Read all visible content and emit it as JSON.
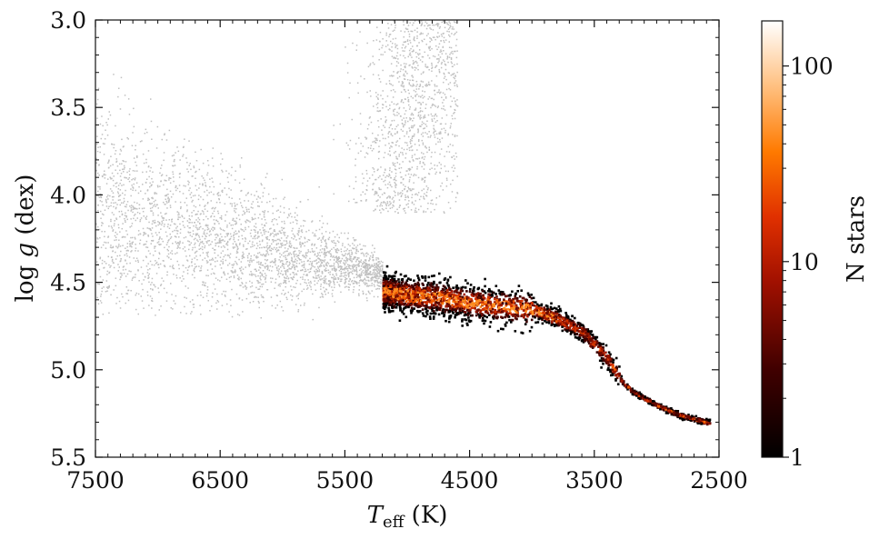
{
  "chart_data": {
    "type": "heatmap",
    "title": "",
    "xlabel": "T_eff (K)",
    "xlabel_main": "T",
    "xlabel_sub": "eff",
    "xlabel_unit": " (K)",
    "ylabel": "log g (dex)",
    "ylabel_log": "log ",
    "ylabel_g": "g",
    "ylabel_unit": " (dex)",
    "xlim": [
      7500,
      2500
    ],
    "ylim": [
      5.5,
      3.0
    ],
    "x_inverted": true,
    "y_inverted": true,
    "xticks": [
      7500,
      6500,
      5500,
      4500,
      3500,
      2500
    ],
    "yticks": [
      "3.0",
      "3.5",
      "4.0",
      "4.5",
      "5.0",
      "5.5"
    ],
    "yticks_values": [
      3.0,
      3.5,
      4.0,
      4.5,
      5.0,
      5.5
    ],
    "grid": false,
    "colorbar": {
      "label": "N stars",
      "scale": "log",
      "range": [
        1,
        170
      ],
      "ticks": [
        "1",
        "10",
        "100"
      ],
      "tick_values": [
        1,
        10,
        100
      ],
      "colormap": "gist_heat"
    },
    "background_population": {
      "color": "#c0c0c0",
      "description_regions": [
        {
          "teff_range": [
            7500,
            5200
          ],
          "logg_range": [
            3.9,
            4.75
          ]
        },
        {
          "teff_range": [
            5200,
            4700
          ],
          "logg_range": [
            3.0,
            4.0
          ]
        }
      ]
    },
    "highlighted_sequence": {
      "points": [
        {
          "teff": 5200,
          "logg": 4.55
        },
        {
          "teff": 4800,
          "logg": 4.58
        },
        {
          "teff": 4400,
          "logg": 4.62
        },
        {
          "teff": 4000,
          "logg": 4.65
        },
        {
          "teff": 3800,
          "logg": 4.7
        },
        {
          "teff": 3600,
          "logg": 4.78
        },
        {
          "teff": 3400,
          "logg": 4.93
        },
        {
          "teff": 3300,
          "logg": 5.05
        },
        {
          "teff": 3200,
          "logg": 5.12
        },
        {
          "teff": 3000,
          "logg": 5.2
        },
        {
          "teff": 2800,
          "logg": 5.26
        },
        {
          "teff": 2580,
          "logg": 5.3
        }
      ]
    }
  }
}
